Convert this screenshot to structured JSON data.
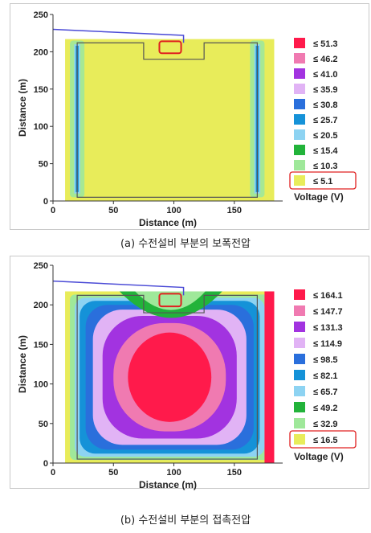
{
  "chart_data": [
    {
      "type": "heatmap",
      "title": "",
      "xlabel": "Distance (m)",
      "ylabel": "Distance (m)",
      "xlim": [
        0,
        190
      ],
      "ylim": [
        0,
        250
      ],
      "xticks": [
        0,
        50,
        100,
        150
      ],
      "yticks": [
        0,
        50,
        100,
        150,
        200,
        250
      ],
      "legend_title": "Voltage (V)",
      "legend_placement": "right",
      "highlighted_level": "≤ 5.1",
      "levels": [
        {
          "label": "≤ 51.3",
          "value": 51.3,
          "color": "#ff1a4b"
        },
        {
          "label": "≤ 46.2",
          "value": 46.2,
          "color": "#f07ab1"
        },
        {
          "label": "≤ 41.0",
          "value": 41.0,
          "color": "#a233e0"
        },
        {
          "label": "≤ 35.9",
          "value": 35.9,
          "color": "#e1b3f5"
        },
        {
          "label": "≤ 30.8",
          "value": 30.8,
          "color": "#2a6fdc"
        },
        {
          "label": "≤ 25.7",
          "value": 25.7,
          "color": "#1592d8"
        },
        {
          "label": "≤ 20.5",
          "value": 20.5,
          "color": "#8dd3f2"
        },
        {
          "label": "≤ 15.4",
          "value": 15.4,
          "color": "#22b33a"
        },
        {
          "label": "≤ 10.3",
          "value": 10.3,
          "color": "#9fe89a"
        },
        {
          "label": "≤ 5.1",
          "value": 5.1,
          "color": "#e8ec5a"
        }
      ],
      "caption": "(a) 수전설비 부분의 보폭전압"
    },
    {
      "type": "heatmap",
      "title": "",
      "xlabel": "Distance (m)",
      "ylabel": "Distance (m)",
      "xlim": [
        0,
        190
      ],
      "ylim": [
        0,
        250
      ],
      "xticks": [
        0,
        50,
        100,
        150
      ],
      "yticks": [
        0,
        50,
        100,
        150,
        200,
        250
      ],
      "legend_title": "Voltage (V)",
      "legend_placement": "right",
      "highlighted_level": "≤ 16.5",
      "levels": [
        {
          "label": "≤ 164.1",
          "value": 164.1,
          "color": "#ff1a4b"
        },
        {
          "label": "≤ 147.7",
          "value": 147.7,
          "color": "#f07ab1"
        },
        {
          "label": "≤ 131.3",
          "value": 131.3,
          "color": "#a233e0"
        },
        {
          "label": "≤ 114.9",
          "value": 114.9,
          "color": "#e1b3f5"
        },
        {
          "label": "≤ 98.5",
          "value": 98.5,
          "color": "#2a6fdc"
        },
        {
          "label": "≤ 82.1",
          "value": 82.1,
          "color": "#1592d8"
        },
        {
          "label": "≤ 65.7",
          "value": 65.7,
          "color": "#8dd3f2"
        },
        {
          "label": "≤ 49.2",
          "value": 49.2,
          "color": "#22b33a"
        },
        {
          "label": "≤ 32.9",
          "value": 32.9,
          "color": "#9fe89a"
        },
        {
          "label": "≤ 16.5",
          "value": 16.5,
          "color": "#e8ec5a"
        }
      ],
      "caption": "(b) 수전설비 부분의 접촉전압"
    }
  ]
}
